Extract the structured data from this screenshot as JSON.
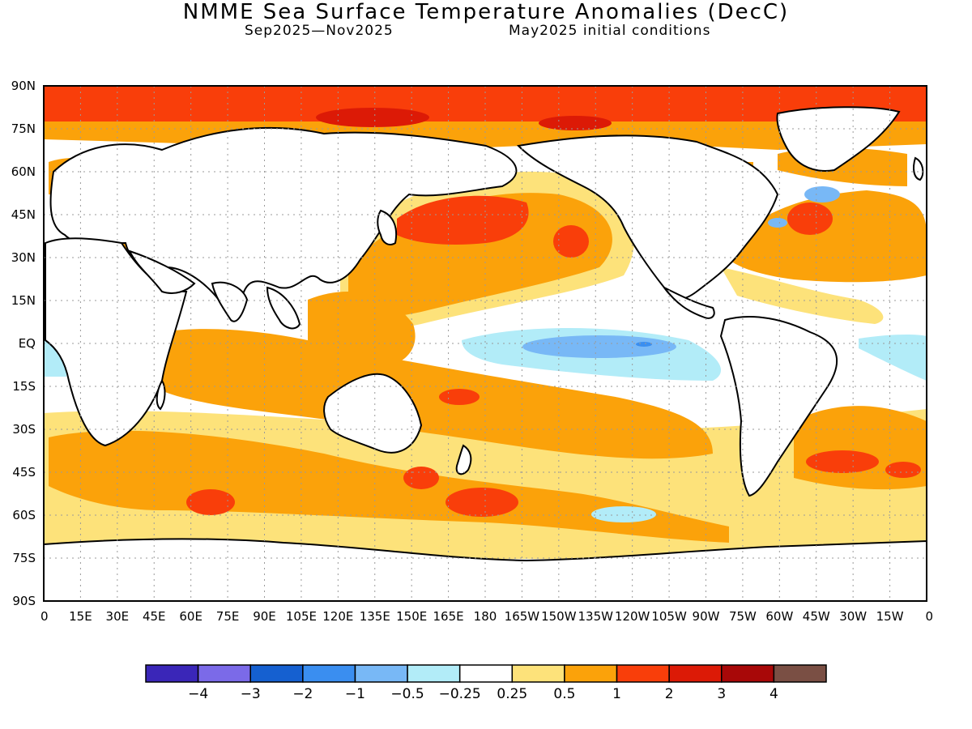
{
  "title": "NMME Sea Surface Temperature Anomalies (DecC)",
  "subtitle_left": "Sep2025—Nov2025",
  "subtitle_right": "May2025 initial conditions",
  "lat_labels": [
    "90N",
    "75N",
    "60N",
    "45N",
    "30N",
    "15N",
    "EQ",
    "15S",
    "30S",
    "45S",
    "60S",
    "75S",
    "90S"
  ],
  "lon_labels": [
    "0",
    "15E",
    "30E",
    "45E",
    "60E",
    "75E",
    "90E",
    "105E",
    "120E",
    "135E",
    "150E",
    "165E",
    "180",
    "165W",
    "150W",
    "135W",
    "120W",
    "105W",
    "90W",
    "75W",
    "60W",
    "45W",
    "30W",
    "15W",
    "0"
  ],
  "colorbar": {
    "colors": [
      "#3a26b8",
      "#7b6ae8",
      "#1560d0",
      "#3a8ef0",
      "#78b8f6",
      "#b2ecf8",
      "#ffffff",
      "#fde27a",
      "#fba20a",
      "#f93e0a",
      "#dc1a06",
      "#a80808",
      "#7a4f44"
    ],
    "ticks": [
      "−4",
      "−3",
      "−2",
      "−1",
      "−0.5",
      "−0.25",
      "0.25",
      "0.5",
      "1",
      "2",
      "3",
      "4"
    ]
  },
  "chart_data": {
    "type": "heatmap",
    "title": "NMME Sea Surface Temperature Anomalies (DecC)",
    "xlim": [
      0,
      360
    ],
    "ylim": [
      -90,
      90
    ],
    "levels": [
      -4,
      -3,
      -2,
      -1,
      -0.5,
      -0.25,
      0.25,
      0.5,
      1,
      2,
      3,
      4
    ],
    "grid": true
  }
}
